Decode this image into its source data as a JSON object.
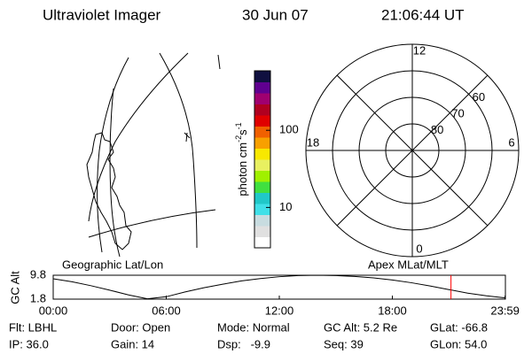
{
  "header": {
    "title": "Ultraviolet Imager",
    "date": "30 Jun 07",
    "time": "21:06:44 UT"
  },
  "map": {
    "label": "Geographic Lat/Lon"
  },
  "colorbar": {
    "label": "photon cm",
    "exp1": "-2",
    "unit2": "s",
    "exp2": "-1",
    "ylim": [
      3,
      590
    ],
    "log": true,
    "yticks": [
      10,
      100
    ],
    "colors": [
      "#ffffff",
      "#e0e0e0",
      "#c8dce0",
      "#40e0e8",
      "#20c8c8",
      "#40e040",
      "#a0f000",
      "#e8f060",
      "#f8e800",
      "#f8a000",
      "#f06000",
      "#e00000",
      "#b00020",
      "#a00070",
      "#600090",
      "#101040"
    ]
  },
  "polar": {
    "label": "Apex MLat/MLT",
    "rlim": [
      90,
      50
    ],
    "lat_ticks": [
      60,
      70,
      80
    ],
    "mlt_ticks": [
      12,
      18,
      6,
      0
    ]
  },
  "chart_data": {
    "type": "line",
    "ylabel": "GC Alt",
    "x": [
      0,
      1,
      2,
      3,
      4,
      5,
      6,
      7,
      8,
      9,
      10,
      11,
      12,
      13,
      14,
      15,
      16,
      17,
      18,
      19,
      20,
      21,
      22,
      23,
      24
    ],
    "values": [
      8.6,
      7.6,
      6.3,
      4.8,
      3.2,
      1.9,
      2.6,
      4.2,
      5.6,
      6.8,
      7.9,
      8.7,
      9.3,
      9.7,
      9.8,
      9.7,
      9.4,
      8.9,
      8.2,
      7.3,
      6.2,
      5.0,
      3.8,
      2.9,
      2.2
    ],
    "color": "#000000",
    "xlim": [
      0,
      24
    ],
    "xticks": [
      {
        "value": 0,
        "label": "00:00"
      },
      {
        "value": 6,
        "label": "06:00"
      },
      {
        "value": 12,
        "label": "12:00"
      },
      {
        "value": 18,
        "label": "18:00"
      },
      {
        "value": 23.983,
        "label": "23:59"
      }
    ],
    "ylim": [
      1.8,
      9.8
    ],
    "yticks": [
      1.8,
      9.8
    ],
    "current_time": 21.112,
    "marker_color": "#ff0000"
  },
  "info": [
    [
      "Flt: LBHL",
      "Door: Open",
      "Mode: Normal",
      "GC Alt: 5.2 Re",
      "GLat: -66.8"
    ],
    [
      "IP: 36.0",
      "Gain: 14",
      "Dsp:   -9.9",
      "Seq: 39",
      "GLon: 54.0"
    ]
  ]
}
